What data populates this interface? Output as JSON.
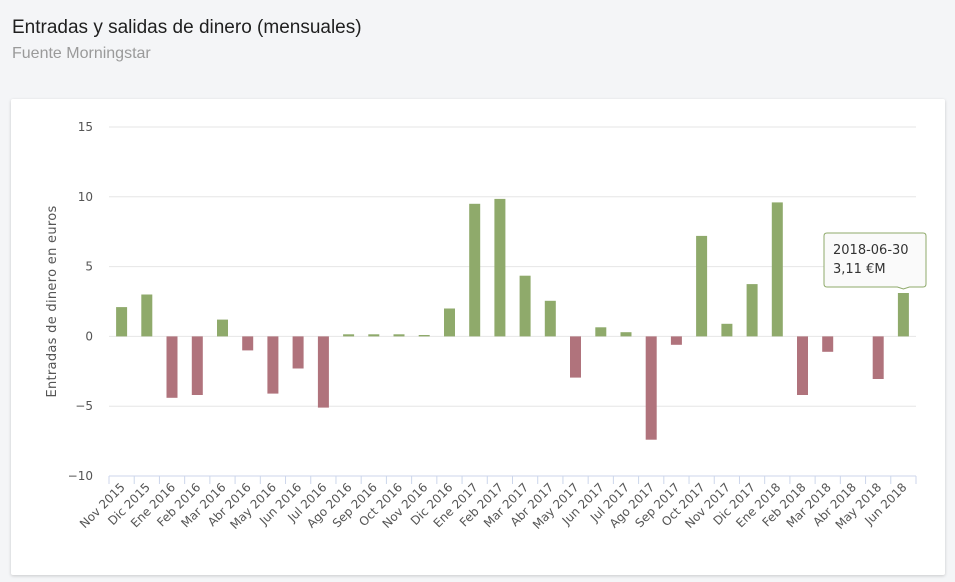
{
  "header": {
    "title": "Entradas y salidas de dinero (mensuales)",
    "subtitle": "Fuente Morningstar"
  },
  "colors": {
    "positive": "#8faa6b",
    "negative": "#b0737c",
    "grid": "#e6e6e6",
    "tooltip_border": "#8faa6b"
  },
  "tooltip": {
    "line1": "2018-06-30",
    "line2": "3,11 €M"
  },
  "chart_data": {
    "type": "bar",
    "title": "Entradas y salidas de dinero (mensuales)",
    "subtitle": "Fuente Morningstar",
    "xlabel": "",
    "ylabel": "Entradas de dinero en euros",
    "ylim": [
      -10,
      15
    ],
    "yticks": [
      -10,
      -5,
      0,
      5,
      10,
      15
    ],
    "ytick_labels": [
      "−10",
      "−5",
      "0",
      "5",
      "10",
      "15"
    ],
    "grid": true,
    "categories": [
      "Nov 2015",
      "Dic 2015",
      "Ene 2016",
      "Feb 2016",
      "Mar 2016",
      "Abr 2016",
      "May 2016",
      "Jun 2016",
      "Jul 2016",
      "Ago 2016",
      "Sep 2016",
      "Oct 2016",
      "Nov 2016",
      "Dic 2016",
      "Ene 2017",
      "Feb 2017",
      "Mar 2017",
      "Abr 2017",
      "May 2017",
      "Jun 2017",
      "Jul 2017",
      "Ago 2017",
      "Sep 2017",
      "Oct 2017",
      "Nov 2017",
      "Dic 2017",
      "Ene 2018",
      "Feb 2018",
      "Mar 2018",
      "Abr 2018",
      "May 2018",
      "Jun 2018"
    ],
    "values": [
      2.1,
      3.0,
      -4.4,
      -4.2,
      1.2,
      -1.0,
      -4.1,
      -2.3,
      -5.1,
      0.15,
      0.15,
      0.15,
      0.1,
      2.0,
      9.5,
      9.85,
      4.35,
      2.55,
      -2.95,
      0.65,
      0.3,
      -7.4,
      -0.6,
      7.2,
      0.9,
      3.75,
      9.6,
      -4.2,
      -1.1,
      0.0,
      -3.05,
      3.11
    ]
  }
}
